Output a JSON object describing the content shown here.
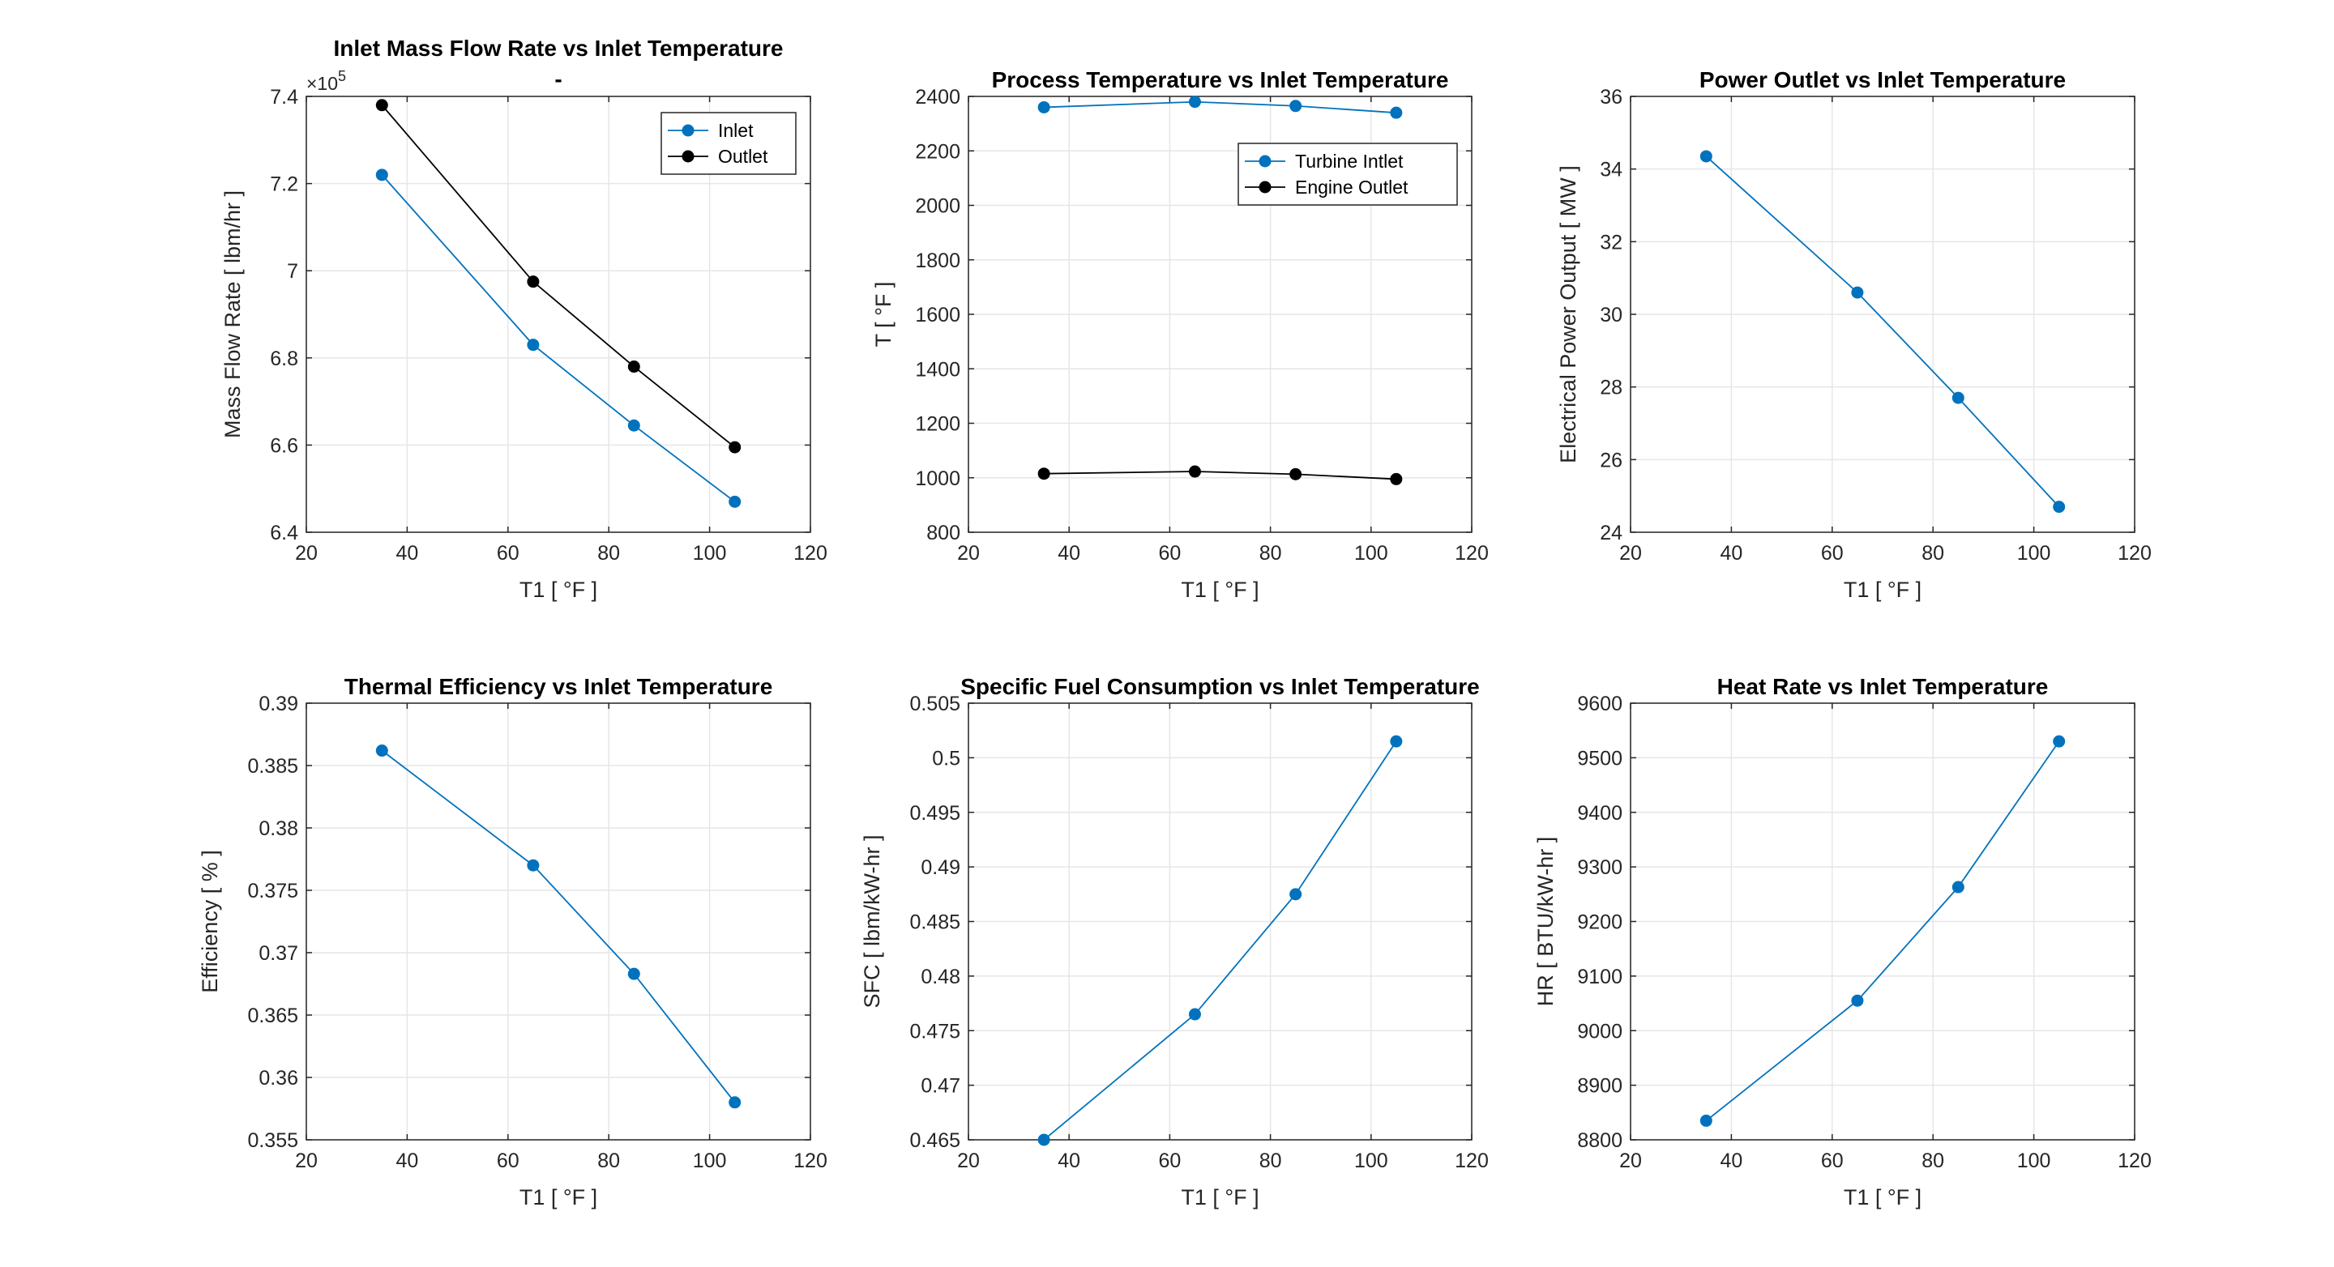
{
  "chart_data": [
    {
      "type": "line",
      "title": "Inlet Mass Flow Rate vs Inlet Temperature",
      "subtitle": "-",
      "xlabel": "T1 [ °F ]",
      "ylabel": "Mass Flow Rate [ lbm/hr ]",
      "y_exponent_base": "×10",
      "y_exponent_power": "5",
      "xlim": [
        20,
        120
      ],
      "ylim": [
        6.4,
        7.4
      ],
      "xticks": [
        20,
        40,
        60,
        80,
        100,
        120
      ],
      "yticks": [
        6.4,
        6.6,
        6.8,
        7.0,
        7.2,
        7.4
      ],
      "xtick_labels": [
        "20",
        "40",
        "60",
        "80",
        "100",
        "120"
      ],
      "ytick_labels": [
        "6.4",
        "6.6",
        "6.8",
        "7",
        "7.2",
        "7.4"
      ],
      "grid": true,
      "legend": "top-right",
      "series": [
        {
          "name": "Inlet",
          "color": "#0072BD",
          "x": [
            35,
            65,
            85,
            105
          ],
          "y": [
            7.22,
            6.83,
            6.645,
            6.47
          ]
        },
        {
          "name": "Outlet",
          "color": "#000000",
          "x": [
            35,
            65,
            85,
            105
          ],
          "y": [
            7.38,
            6.975,
            6.78,
            6.595
          ]
        }
      ]
    },
    {
      "type": "line",
      "title": "Process Temperature vs Inlet Temperature",
      "xlabel": "T1 [ °F ]",
      "ylabel": "T [ °F ]",
      "xlim": [
        20,
        120
      ],
      "ylim": [
        800,
        2400
      ],
      "xticks": [
        20,
        40,
        60,
        80,
        100,
        120
      ],
      "yticks": [
        800,
        1000,
        1200,
        1400,
        1600,
        1800,
        2000,
        2200,
        2400
      ],
      "xtick_labels": [
        "20",
        "40",
        "60",
        "80",
        "100",
        "120"
      ],
      "ytick_labels": [
        "800",
        "1000",
        "1200",
        "1400",
        "1600",
        "1800",
        "2000",
        "2200",
        "2400"
      ],
      "grid": true,
      "legend": "top-right",
      "series": [
        {
          "name": "Turbine Intlet",
          "color": "#0072BD",
          "x": [
            35,
            65,
            85,
            105
          ],
          "y": [
            2360,
            2380,
            2365,
            2340
          ]
        },
        {
          "name": "Engine Outlet",
          "color": "#000000",
          "x": [
            35,
            65,
            85,
            105
          ],
          "y": [
            1015,
            1023,
            1013,
            995
          ]
        }
      ]
    },
    {
      "type": "line",
      "title": "Power Outlet vs Inlet Temperature",
      "xlabel": "T1 [ °F ]",
      "ylabel": "Electrical Power Output [ MW ]",
      "xlim": [
        20,
        120
      ],
      "ylim": [
        24,
        36
      ],
      "xticks": [
        20,
        40,
        60,
        80,
        100,
        120
      ],
      "yticks": [
        24,
        26,
        28,
        30,
        32,
        34,
        36
      ],
      "xtick_labels": [
        "20",
        "40",
        "60",
        "80",
        "100",
        "120"
      ],
      "ytick_labels": [
        "24",
        "26",
        "28",
        "30",
        "32",
        "34",
        "36"
      ],
      "grid": true,
      "series": [
        {
          "color": "#0072BD",
          "x": [
            35,
            65,
            85,
            105
          ],
          "y": [
            34.35,
            30.6,
            27.7,
            24.7
          ]
        }
      ]
    },
    {
      "type": "line",
      "title": "Thermal Efficiency vs Inlet Temperature",
      "xlabel": "T1 [ °F ]",
      "ylabel": "Efficiency [ % ]",
      "xlim": [
        20,
        120
      ],
      "ylim": [
        0.355,
        0.39
      ],
      "xticks": [
        20,
        40,
        60,
        80,
        100,
        120
      ],
      "yticks": [
        0.355,
        0.36,
        0.365,
        0.37,
        0.375,
        0.38,
        0.385,
        0.39
      ],
      "xtick_labels": [
        "20",
        "40",
        "60",
        "80",
        "100",
        "120"
      ],
      "ytick_labels": [
        "0.355",
        "0.36",
        "0.365",
        "0.37",
        "0.375",
        "0.38",
        "0.385",
        "0.39"
      ],
      "grid": true,
      "series": [
        {
          "color": "#0072BD",
          "x": [
            35,
            65,
            85,
            105
          ],
          "y": [
            0.3862,
            0.377,
            0.3683,
            0.358
          ]
        }
      ]
    },
    {
      "type": "line",
      "title": "Specific Fuel Consumption vs Inlet Temperature",
      "xlabel": "T1 [ °F ]",
      "ylabel": "SFC [ lbm/kW-hr ]",
      "xlim": [
        20,
        120
      ],
      "ylim": [
        0.465,
        0.505
      ],
      "xticks": [
        20,
        40,
        60,
        80,
        100,
        120
      ],
      "yticks": [
        0.465,
        0.47,
        0.475,
        0.48,
        0.485,
        0.49,
        0.495,
        0.5,
        0.505
      ],
      "xtick_labels": [
        "20",
        "40",
        "60",
        "80",
        "100",
        "120"
      ],
      "ytick_labels": [
        "0.465",
        "0.47",
        "0.475",
        "0.48",
        "0.485",
        "0.49",
        "0.495",
        "0.5",
        "0.505"
      ],
      "grid": true,
      "series": [
        {
          "color": "#0072BD",
          "x": [
            35,
            65,
            85,
            105
          ],
          "y": [
            0.465,
            0.4765,
            0.4875,
            0.5015
          ]
        }
      ]
    },
    {
      "type": "line",
      "title": "Heat Rate vs Inlet Temperature",
      "xlabel": "T1 [ °F ]",
      "ylabel": "HR [ BTU/kW-hr ]",
      "xlim": [
        20,
        120
      ],
      "ylim": [
        8800,
        9600
      ],
      "xticks": [
        20,
        40,
        60,
        80,
        100,
        120
      ],
      "yticks": [
        8800,
        8900,
        9000,
        9100,
        9200,
        9300,
        9400,
        9500,
        9600
      ],
      "xtick_labels": [
        "20",
        "40",
        "60",
        "80",
        "100",
        "120"
      ],
      "ytick_labels": [
        "8800",
        "8900",
        "9000",
        "9100",
        "9200",
        "9300",
        "9400",
        "9500",
        "9600"
      ],
      "grid": true,
      "series": [
        {
          "color": "#0072BD",
          "x": [
            35,
            65,
            85,
            105
          ],
          "y": [
            8835,
            9055,
            9263,
            9530
          ]
        }
      ]
    }
  ]
}
